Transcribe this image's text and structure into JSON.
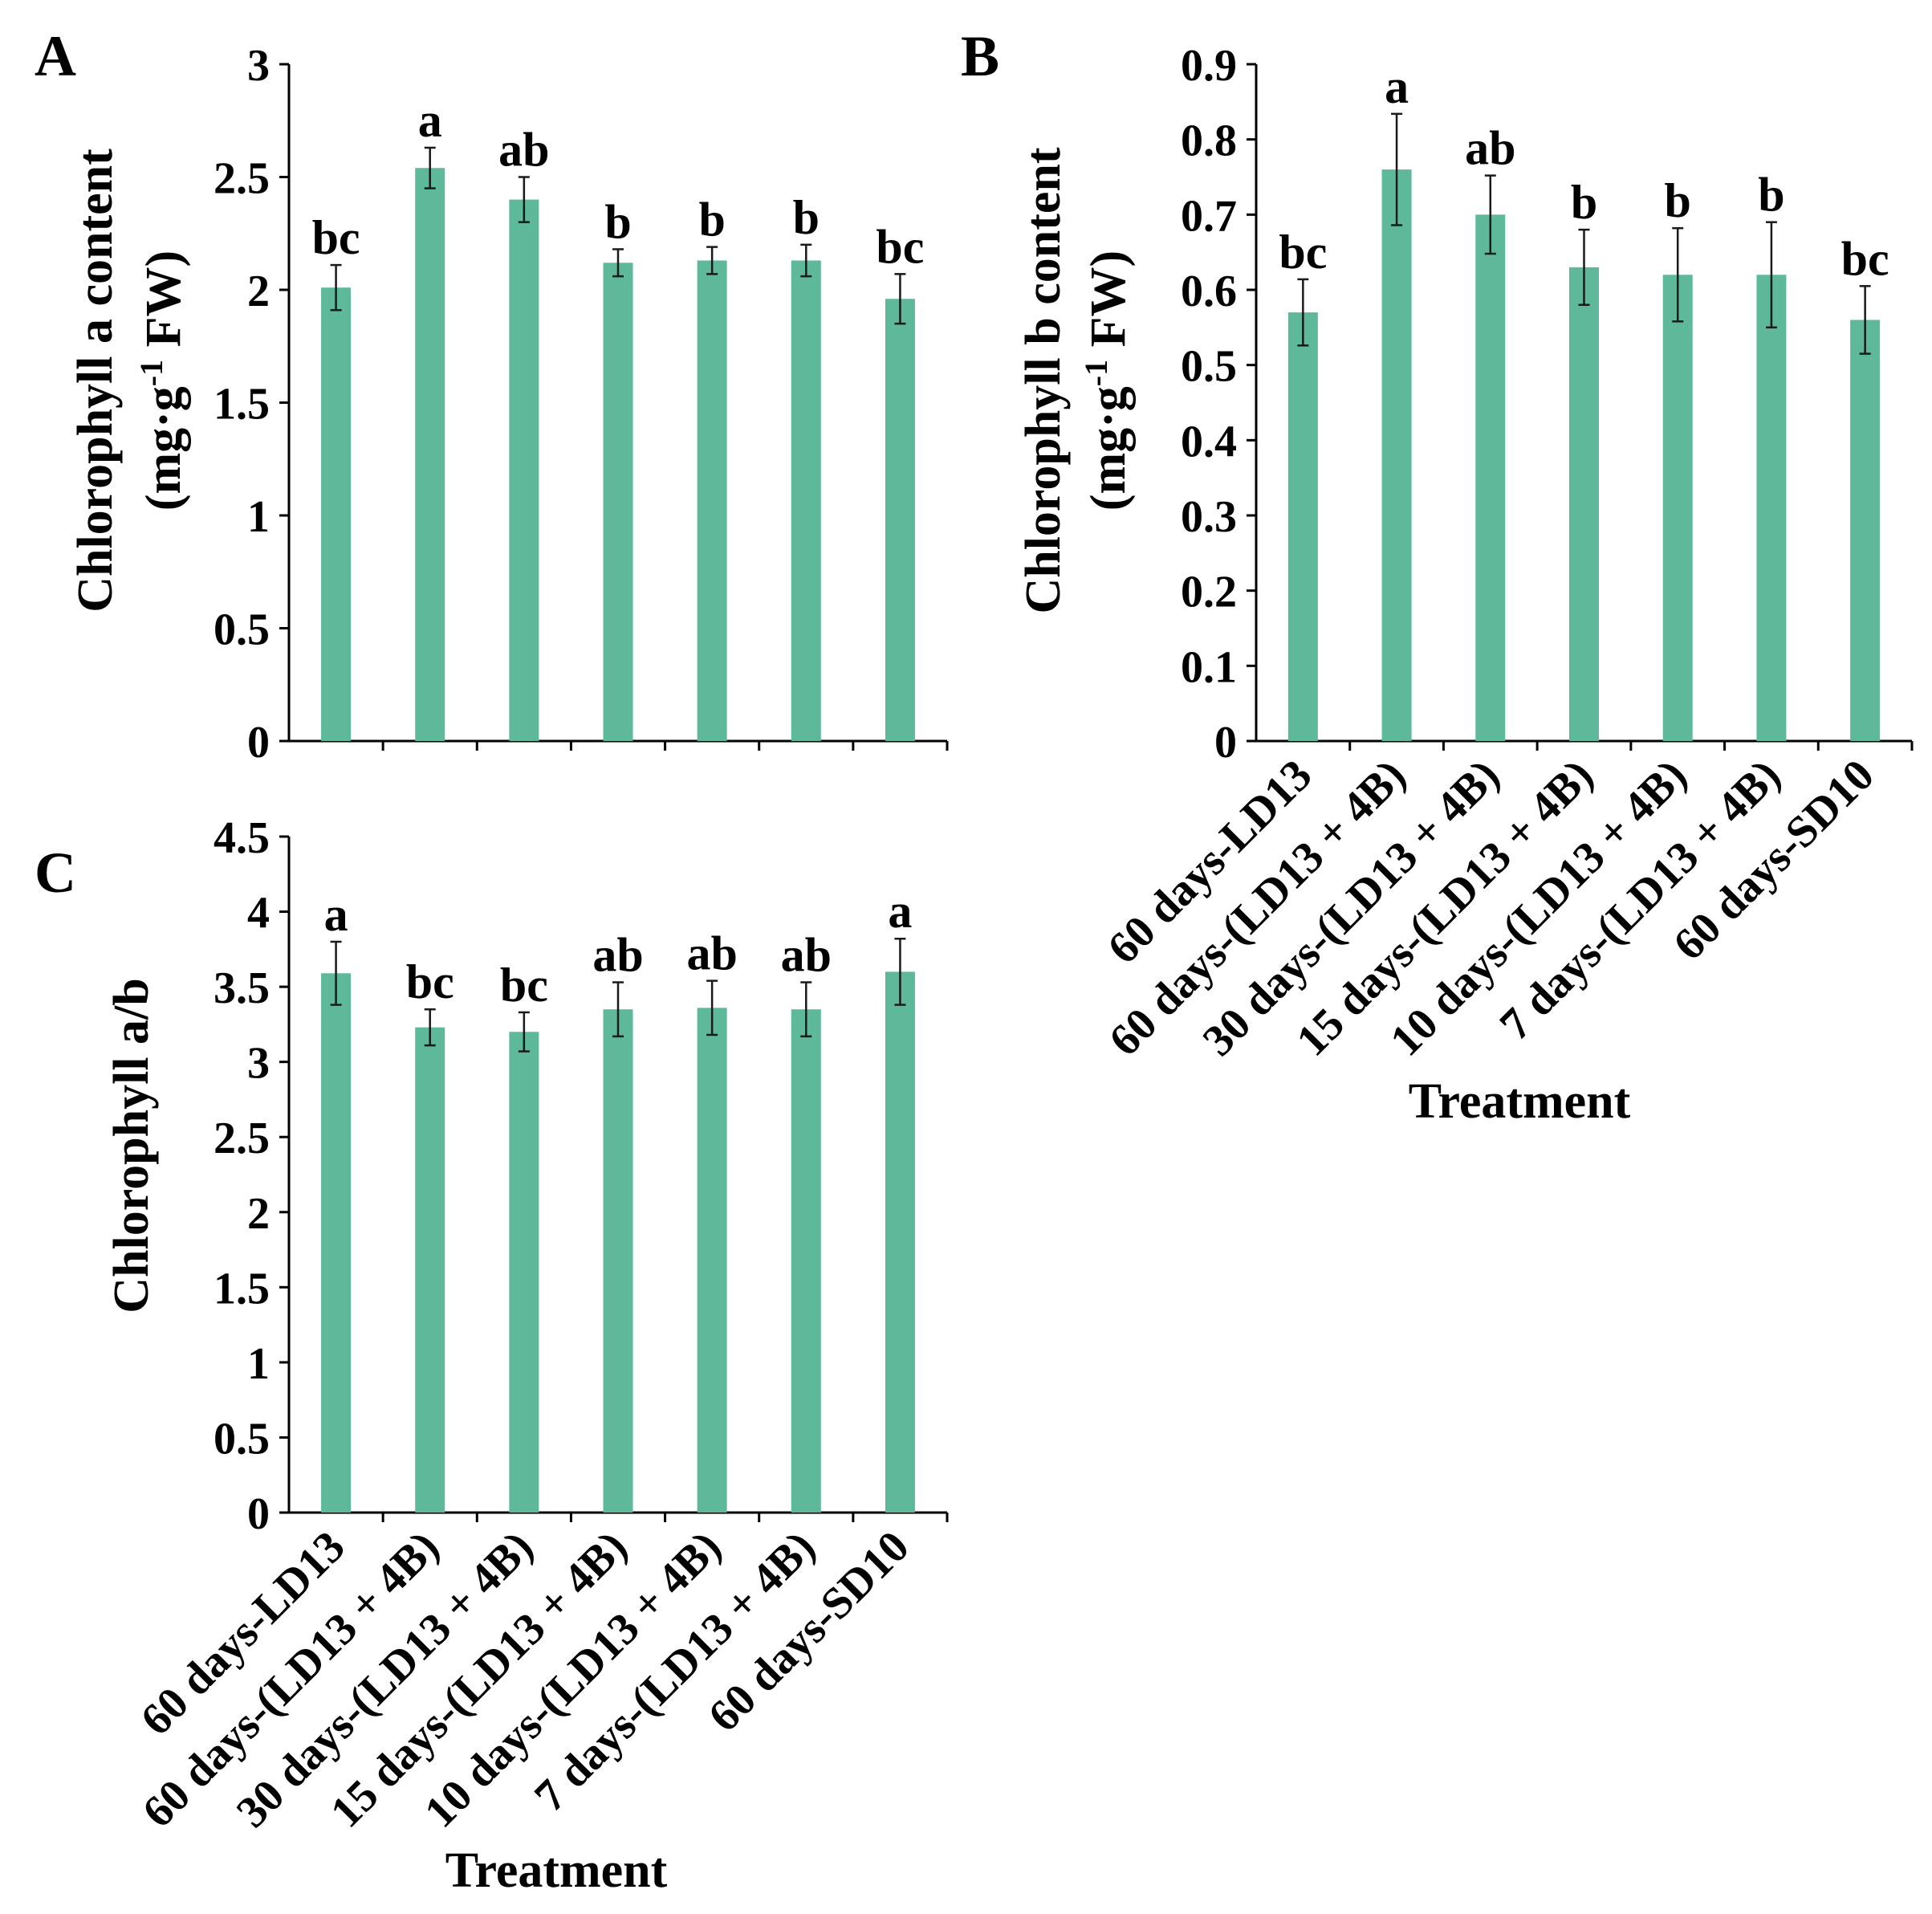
{
  "figure": {
    "background": "#ffffff",
    "bar_color": "#5eb99b",
    "axis_color": "#000000",
    "error_color": "#1a1a1a",
    "text_color": "#000000"
  },
  "chart_data": [
    {
      "panel": "A",
      "type": "bar",
      "ylabel": {
        "line1": "Chlorophyll a content",
        "unit_prefix": "(mg·g",
        "unit_exponent": "-1",
        "unit_suffix": " FW)"
      },
      "ylim": [
        0,
        3
      ],
      "yticks": [
        "0",
        "0.5",
        "1",
        "1.5",
        "2",
        "2.5",
        "3"
      ],
      "values": [
        2.01,
        2.54,
        2.4,
        2.12,
        2.13,
        2.13,
        1.96
      ],
      "errors": [
        0.1,
        0.09,
        0.1,
        0.06,
        0.06,
        0.07,
        0.11
      ],
      "significance": [
        "bc",
        "a",
        "ab",
        "b",
        "b",
        "b",
        "bc"
      ]
    },
    {
      "panel": "B",
      "type": "bar",
      "ylabel": {
        "line1": "Chlorophyll b content",
        "unit_prefix": "(mg·g",
        "unit_exponent": "-1",
        "unit_suffix": " FW)"
      },
      "xlabel": "Treatment",
      "ylim": [
        0,
        0.9
      ],
      "yticks": [
        "0",
        "0.1",
        "0.2",
        "0.3",
        "0.4",
        "0.5",
        "0.6",
        "0.7",
        "0.8",
        "0.9"
      ],
      "categories": [
        "60 days-LD13",
        "60 days-(LD13 + 4B)",
        "30 days-(LD13 + 4B)",
        "15 days-(LD13 + 4B)",
        "10 days-(LD13 + 4B)",
        "7 days-(LD13 + 4B)",
        "60 days-SD10"
      ],
      "values": [
        0.57,
        0.76,
        0.7,
        0.63,
        0.62,
        0.62,
        0.56
      ],
      "errors": [
        0.044,
        0.074,
        0.052,
        0.05,
        0.062,
        0.07,
        0.045
      ],
      "significance": [
        "bc",
        "a",
        "ab",
        "b",
        "b",
        "b",
        "bc"
      ]
    },
    {
      "panel": "C",
      "type": "bar",
      "ylabel": {
        "line1": "Chlorophyll a/b"
      },
      "xlabel": "Treatment",
      "ylim": [
        0,
        4.5
      ],
      "yticks": [
        "0",
        "0.5",
        "1",
        "1.5",
        "2",
        "2.5",
        "3",
        "3.5",
        "4",
        "4.5"
      ],
      "categories": [
        "60 days-LD13",
        "60 days-(LD13 + 4B)",
        "30 days-(LD13 + 4B)",
        "15 days-(LD13 + 4B)",
        "10 days-(LD13 + 4B)",
        "7 days-(LD13 + 4B)",
        "60 days-SD10"
      ],
      "values": [
        3.59,
        3.23,
        3.2,
        3.35,
        3.36,
        3.35,
        3.6
      ],
      "errors": [
        0.21,
        0.12,
        0.13,
        0.18,
        0.18,
        0.18,
        0.22
      ],
      "significance": [
        "a",
        "bc",
        "bc",
        "ab",
        "ab",
        "ab",
        "a"
      ]
    }
  ]
}
